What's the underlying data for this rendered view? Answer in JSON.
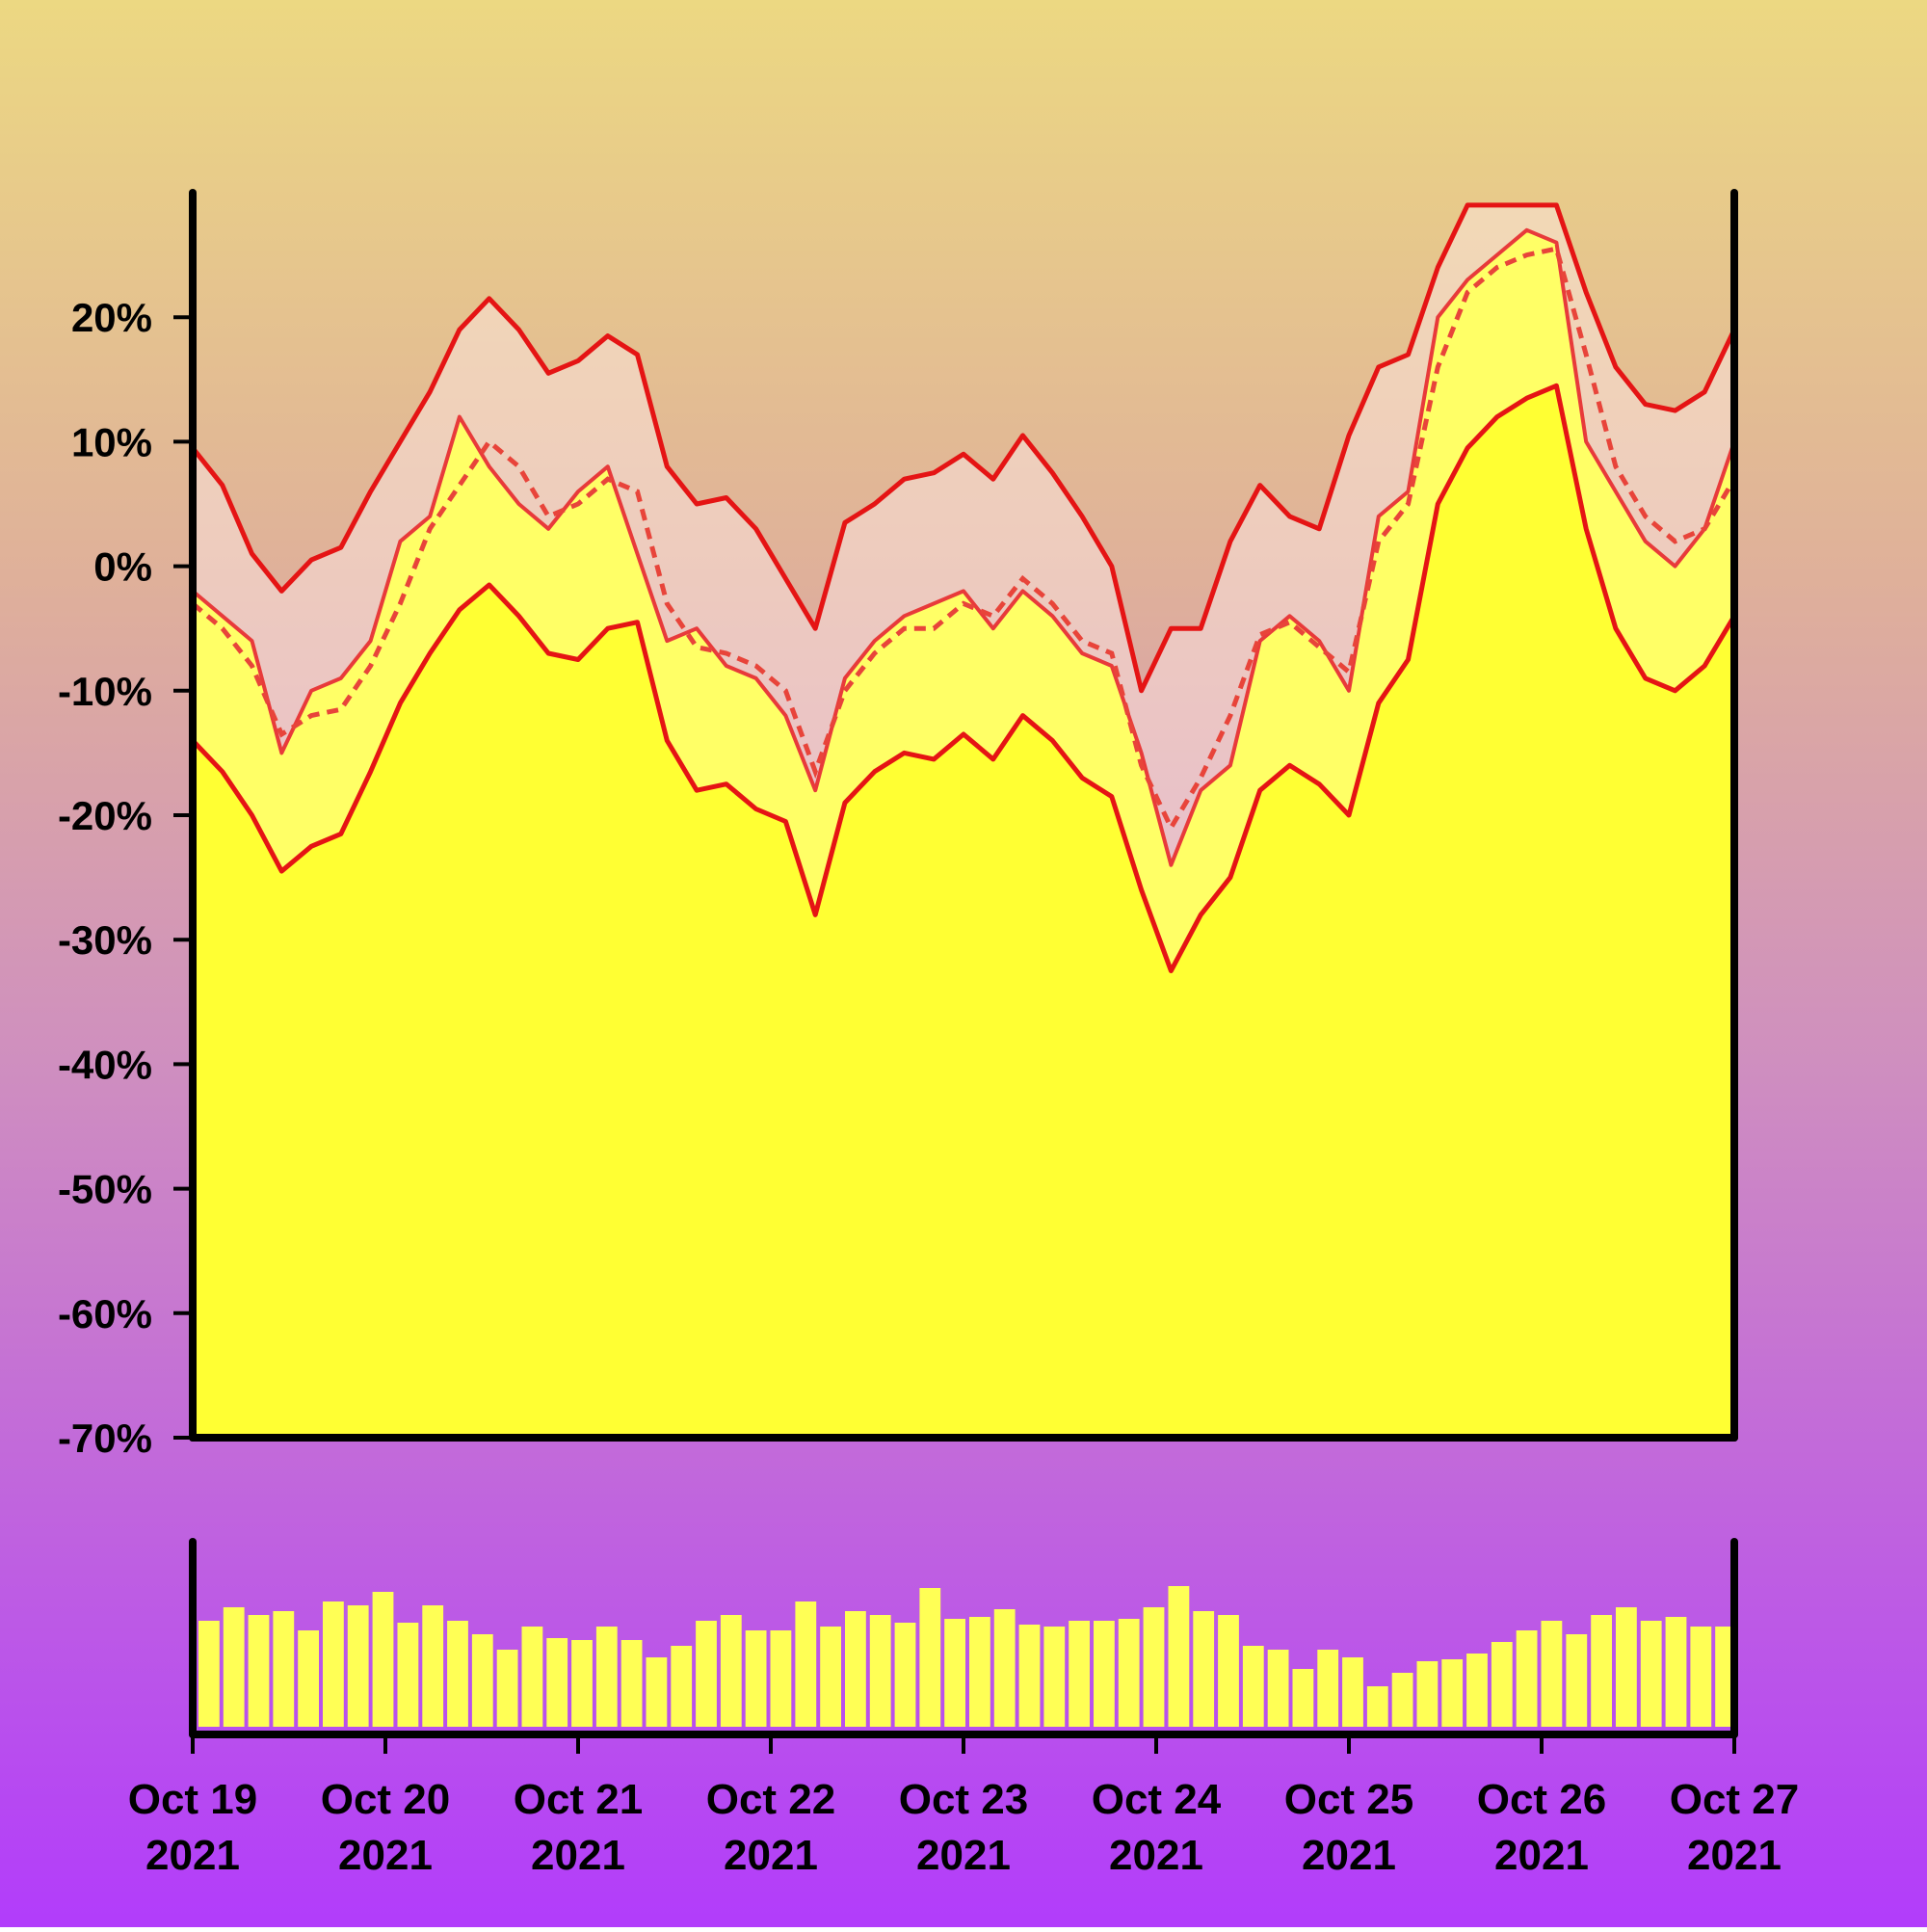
{
  "chart_data": {
    "type": "area",
    "title": "",
    "xlabel": "",
    "ylabel": "",
    "ylim": [
      -70,
      30
    ],
    "y_tick_values": [
      20,
      10,
      0,
      -10,
      -20,
      -30,
      -40,
      -50,
      -60,
      -70
    ],
    "y_tick_labels": [
      "20%",
      "10%",
      "0%",
      "-10%",
      "-20%",
      "-30%",
      "-40%",
      "-50%",
      "-60%",
      "-70%"
    ],
    "x_range": [
      "2021-10-19",
      "2021-10-27"
    ],
    "x_tick_labels": [
      {
        "line1": "Oct 19",
        "line2": "2021"
      },
      {
        "line1": "Oct 20",
        "line2": "2021"
      },
      {
        "line1": "Oct 21",
        "line2": "2021"
      },
      {
        "line1": "Oct 22",
        "line2": "2021"
      },
      {
        "line1": "Oct 23",
        "line2": "2021"
      },
      {
        "line1": "Oct 24",
        "line2": "2021"
      },
      {
        "line1": "Oct 25",
        "line2": "2021"
      },
      {
        "line1": "Oct 26",
        "line2": "2021"
      },
      {
        "line1": "Oct 27",
        "line2": "2021"
      }
    ],
    "day_positions": [
      0,
      1,
      1.5,
      2,
      3,
      4,
      5,
      6,
      7,
      8
    ],
    "series": [
      {
        "role": "upper_band",
        "style": "solid",
        "values": [
          9.5,
          6.5,
          1,
          -2,
          0.5,
          1.5,
          6,
          10,
          14,
          19,
          21.5,
          19,
          15.5,
          16.5,
          18.5,
          17,
          8,
          5,
          5.5,
          3,
          -1,
          -5,
          3.5,
          5,
          7,
          7.5,
          9,
          7,
          10.5,
          7.5,
          4,
          0,
          -10,
          -5,
          -5,
          2,
          6.5,
          4,
          3,
          10.5,
          16,
          17,
          24,
          29,
          29,
          29,
          29,
          22,
          16,
          13,
          12.5,
          14,
          19
        ]
      },
      {
        "role": "mean",
        "style": "dashed",
        "values": [
          -3,
          -5,
          -8,
          -13.5,
          -12,
          -11.5,
          -8,
          -3,
          3,
          6.5,
          10,
          8,
          4,
          5,
          7,
          6,
          -3,
          -6.5,
          -7,
          -8,
          -10,
          -16.5,
          -10,
          -7,
          -5,
          -5,
          -3,
          -4,
          -1,
          -3,
          -6,
          -7,
          -16,
          -21,
          -17,
          -12,
          -5.5,
          -4.5,
          -6.5,
          -8.5,
          2,
          5,
          16,
          22,
          24,
          25,
          25.5,
          17,
          8,
          4,
          2,
          3,
          7
        ]
      },
      {
        "role": "lower_band",
        "style": "solid",
        "values": [
          -14,
          -16.5,
          -20,
          -24.5,
          -22.5,
          -21.5,
          -16.5,
          -11,
          -7,
          -3.5,
          -1.5,
          -4,
          -7,
          -7.5,
          -5,
          -4.5,
          -14,
          -18,
          -17.5,
          -19.5,
          -20.5,
          -28,
          -19,
          -16.5,
          -15,
          -15.5,
          -13.5,
          -15.5,
          -12,
          -14,
          -17,
          -18.5,
          -26,
          -32.5,
          -28,
          -25,
          -18,
          -16,
          -17.5,
          -20,
          -11,
          -7.5,
          5,
          9.5,
          12,
          13.5,
          14.5,
          3,
          -5,
          -9,
          -10,
          -8,
          -4
        ]
      },
      {
        "role": "observed",
        "style": "solid",
        "values": [
          -2,
          -4,
          -6,
          -15,
          -10,
          -9,
          -6,
          2,
          4,
          12,
          8,
          5,
          3,
          6,
          8,
          1,
          -6,
          -5,
          -8,
          -9,
          -12,
          -18,
          -9,
          -6,
          -4,
          -3,
          -2,
          -5,
          -2,
          -4,
          -7,
          -8,
          -15,
          -24,
          -18,
          -16,
          -6,
          -4,
          -6,
          -10,
          4,
          6,
          20,
          23,
          25,
          27,
          26,
          10,
          6,
          2,
          0,
          3,
          10
        ]
      }
    ],
    "volume": {
      "type": "bar",
      "ylim": [
        0,
        100
      ],
      "values": [
        55,
        62,
        58,
        60,
        50,
        65,
        63,
        70,
        54,
        63,
        55,
        48,
        40,
        52,
        46,
        45,
        52,
        45,
        36,
        42,
        55,
        58,
        50,
        50,
        65,
        52,
        60,
        58,
        54,
        72,
        56,
        57,
        61,
        53,
        52,
        55,
        55,
        56,
        62,
        73,
        60,
        58,
        42,
        40,
        30,
        40,
        36,
        21,
        28,
        34,
        35,
        38,
        44,
        50,
        55,
        48,
        58,
        62,
        55,
        57,
        52,
        52
      ]
    }
  }
}
